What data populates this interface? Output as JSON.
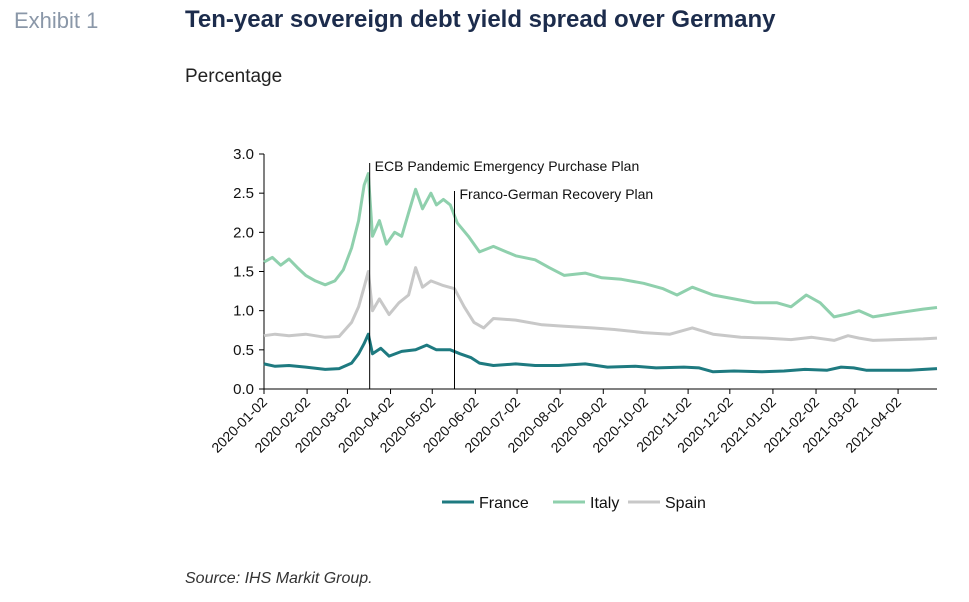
{
  "header": {
    "exhibit": "Exhibit 1",
    "title": "Ten-year sovereign debt yield spread over Germany",
    "subtitle": "Percentage"
  },
  "footer": {
    "source": "Source: IHS Markit Group."
  },
  "chart_data": {
    "type": "line",
    "ylim": [
      0,
      3.0
    ],
    "yticks": [
      "0.0",
      "0.5",
      "1.0",
      "1.5",
      "2.0",
      "2.5",
      "3.0"
    ],
    "x_start": "2020-01-02",
    "x_end": "2021-04-30",
    "xticks": [
      "2020-01-02",
      "2020-02-02",
      "2020-03-02",
      "2020-04-02",
      "2020-05-02",
      "2020-06-02",
      "2020-07-02",
      "2020-08-02",
      "2020-09-02",
      "2020-10-02",
      "2020-11-02",
      "2020-12-02",
      "2021-01-02",
      "2021-02-02",
      "2021-03-02",
      "2021-04-02"
    ],
    "legend_position": "bottom",
    "annotations": [
      {
        "date": "2020-03-18",
        "label": "ECB Pandemic Emergency Purchase Plan"
      },
      {
        "date": "2020-05-18",
        "label": "Franco-German Recovery Plan"
      }
    ],
    "series": [
      {
        "name": "France",
        "color": "#1e7a80",
        "points": [
          [
            "2020-01-02",
            0.32
          ],
          [
            "2020-01-10",
            0.29
          ],
          [
            "2020-01-20",
            0.3
          ],
          [
            "2020-02-01",
            0.28
          ],
          [
            "2020-02-15",
            0.25
          ],
          [
            "2020-02-25",
            0.26
          ],
          [
            "2020-03-05",
            0.33
          ],
          [
            "2020-03-10",
            0.45
          ],
          [
            "2020-03-14",
            0.58
          ],
          [
            "2020-03-17",
            0.7
          ],
          [
            "2020-03-20",
            0.45
          ],
          [
            "2020-03-26",
            0.52
          ],
          [
            "2020-04-01",
            0.42
          ],
          [
            "2020-04-10",
            0.48
          ],
          [
            "2020-04-20",
            0.5
          ],
          [
            "2020-04-28",
            0.56
          ],
          [
            "2020-05-05",
            0.5
          ],
          [
            "2020-05-15",
            0.5
          ],
          [
            "2020-05-22",
            0.45
          ],
          [
            "2020-05-30",
            0.4
          ],
          [
            "2020-06-05",
            0.33
          ],
          [
            "2020-06-15",
            0.3
          ],
          [
            "2020-07-01",
            0.32
          ],
          [
            "2020-07-15",
            0.3
          ],
          [
            "2020-08-01",
            0.3
          ],
          [
            "2020-08-20",
            0.32
          ],
          [
            "2020-09-05",
            0.28
          ],
          [
            "2020-09-25",
            0.29
          ],
          [
            "2020-10-10",
            0.27
          ],
          [
            "2020-10-30",
            0.28
          ],
          [
            "2020-11-10",
            0.27
          ],
          [
            "2020-11-20",
            0.22
          ],
          [
            "2020-12-05",
            0.23
          ],
          [
            "2020-12-25",
            0.22
          ],
          [
            "2021-01-10",
            0.23
          ],
          [
            "2021-01-25",
            0.25
          ],
          [
            "2021-02-10",
            0.24
          ],
          [
            "2021-02-20",
            0.28
          ],
          [
            "2021-03-01",
            0.27
          ],
          [
            "2021-03-10",
            0.24
          ],
          [
            "2021-03-25",
            0.24
          ],
          [
            "2021-04-10",
            0.24
          ],
          [
            "2021-04-30",
            0.26
          ]
        ]
      },
      {
        "name": "Italy",
        "color": "#8fd0ad",
        "points": [
          [
            "2020-01-02",
            1.62
          ],
          [
            "2020-01-08",
            1.68
          ],
          [
            "2020-01-14",
            1.58
          ],
          [
            "2020-01-20",
            1.66
          ],
          [
            "2020-01-26",
            1.55
          ],
          [
            "2020-02-01",
            1.45
          ],
          [
            "2020-02-08",
            1.38
          ],
          [
            "2020-02-15",
            1.33
          ],
          [
            "2020-02-22",
            1.38
          ],
          [
            "2020-02-28",
            1.52
          ],
          [
            "2020-03-05",
            1.8
          ],
          [
            "2020-03-10",
            2.15
          ],
          [
            "2020-03-14",
            2.6
          ],
          [
            "2020-03-17",
            2.75
          ],
          [
            "2020-03-20",
            1.95
          ],
          [
            "2020-03-25",
            2.15
          ],
          [
            "2020-03-30",
            1.85
          ],
          [
            "2020-04-05",
            2.0
          ],
          [
            "2020-04-10",
            1.95
          ],
          [
            "2020-04-15",
            2.25
          ],
          [
            "2020-04-20",
            2.55
          ],
          [
            "2020-04-25",
            2.3
          ],
          [
            "2020-05-01",
            2.5
          ],
          [
            "2020-05-05",
            2.35
          ],
          [
            "2020-05-10",
            2.42
          ],
          [
            "2020-05-15",
            2.35
          ],
          [
            "2020-05-20",
            2.12
          ],
          [
            "2020-05-28",
            1.95
          ],
          [
            "2020-06-05",
            1.75
          ],
          [
            "2020-06-15",
            1.82
          ],
          [
            "2020-07-01",
            1.7
          ],
          [
            "2020-07-15",
            1.65
          ],
          [
            "2020-07-25",
            1.55
          ],
          [
            "2020-08-05",
            1.45
          ],
          [
            "2020-08-20",
            1.48
          ],
          [
            "2020-09-01",
            1.42
          ],
          [
            "2020-09-15",
            1.4
          ],
          [
            "2020-10-01",
            1.35
          ],
          [
            "2020-10-15",
            1.28
          ],
          [
            "2020-10-25",
            1.2
          ],
          [
            "2020-11-05",
            1.3
          ],
          [
            "2020-11-20",
            1.2
          ],
          [
            "2020-12-05",
            1.15
          ],
          [
            "2020-12-20",
            1.1
          ],
          [
            "2021-01-05",
            1.1
          ],
          [
            "2021-01-15",
            1.05
          ],
          [
            "2021-01-26",
            1.2
          ],
          [
            "2021-02-05",
            1.1
          ],
          [
            "2021-02-15",
            0.92
          ],
          [
            "2021-02-25",
            0.96
          ],
          [
            "2021-03-05",
            1.0
          ],
          [
            "2021-03-15",
            0.92
          ],
          [
            "2021-03-25",
            0.95
          ],
          [
            "2021-04-05",
            0.98
          ],
          [
            "2021-04-20",
            1.02
          ],
          [
            "2021-04-30",
            1.04
          ]
        ]
      },
      {
        "name": "Spain",
        "color": "#c8c8c8",
        "points": [
          [
            "2020-01-02",
            0.68
          ],
          [
            "2020-01-10",
            0.7
          ],
          [
            "2020-01-20",
            0.68
          ],
          [
            "2020-02-01",
            0.7
          ],
          [
            "2020-02-15",
            0.66
          ],
          [
            "2020-02-25",
            0.67
          ],
          [
            "2020-03-05",
            0.85
          ],
          [
            "2020-03-10",
            1.05
          ],
          [
            "2020-03-14",
            1.3
          ],
          [
            "2020-03-17",
            1.5
          ],
          [
            "2020-03-20",
            1.0
          ],
          [
            "2020-03-25",
            1.15
          ],
          [
            "2020-04-01",
            0.95
          ],
          [
            "2020-04-08",
            1.1
          ],
          [
            "2020-04-15",
            1.2
          ],
          [
            "2020-04-20",
            1.55
          ],
          [
            "2020-04-25",
            1.3
          ],
          [
            "2020-05-01",
            1.38
          ],
          [
            "2020-05-10",
            1.32
          ],
          [
            "2020-05-18",
            1.28
          ],
          [
            "2020-05-25",
            1.05
          ],
          [
            "2020-06-01",
            0.85
          ],
          [
            "2020-06-08",
            0.78
          ],
          [
            "2020-06-15",
            0.9
          ],
          [
            "2020-07-01",
            0.88
          ],
          [
            "2020-07-20",
            0.82
          ],
          [
            "2020-08-05",
            0.8
          ],
          [
            "2020-08-25",
            0.78
          ],
          [
            "2020-09-10",
            0.76
          ],
          [
            "2020-10-01",
            0.72
          ],
          [
            "2020-10-20",
            0.7
          ],
          [
            "2020-11-05",
            0.78
          ],
          [
            "2020-11-20",
            0.7
          ],
          [
            "2020-12-10",
            0.66
          ],
          [
            "2020-12-28",
            0.65
          ],
          [
            "2021-01-15",
            0.63
          ],
          [
            "2021-01-30",
            0.66
          ],
          [
            "2021-02-15",
            0.62
          ],
          [
            "2021-02-25",
            0.68
          ],
          [
            "2021-03-05",
            0.65
          ],
          [
            "2021-03-15",
            0.62
          ],
          [
            "2021-04-01",
            0.63
          ],
          [
            "2021-04-20",
            0.64
          ],
          [
            "2021-04-30",
            0.65
          ]
        ]
      }
    ]
  }
}
